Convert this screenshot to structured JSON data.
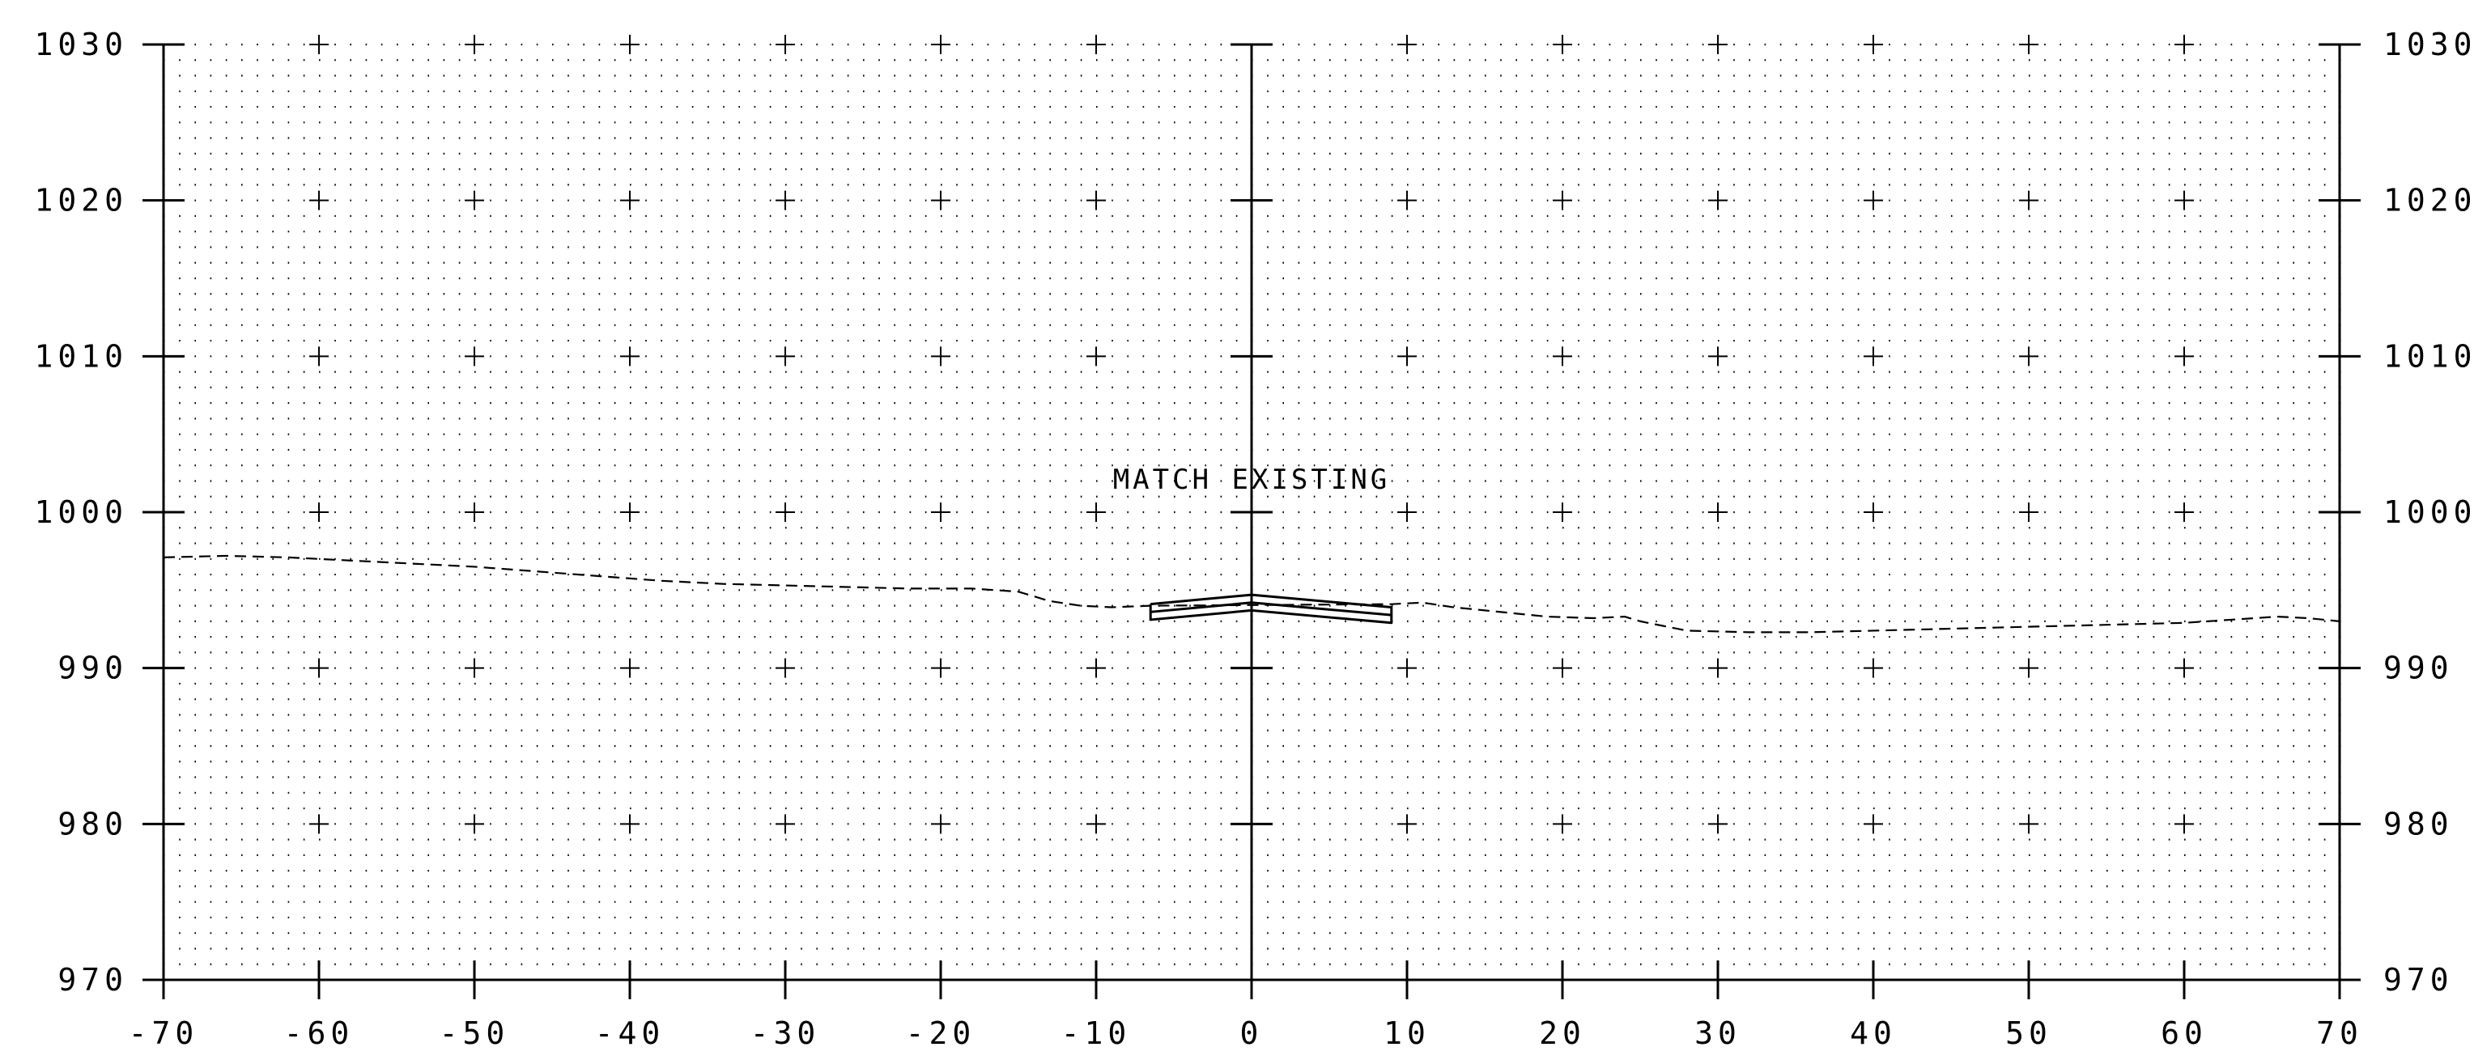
{
  "chart_data": {
    "type": "line",
    "title": "",
    "xlabel": "",
    "ylabel": "",
    "xlim": [
      -70,
      70
    ],
    "ylim": [
      970,
      1030
    ],
    "x_ticks": [
      "-70",
      "-60",
      "-50",
      "-40",
      "-30",
      "-20",
      "-10",
      "0",
      "10",
      "20",
      "30",
      "40",
      "50",
      "60",
      "70"
    ],
    "y_ticks_left": [
      "970",
      "980",
      "990",
      "1000",
      "1010",
      "1020",
      "1030"
    ],
    "y_ticks_right": [
      "970",
      "980",
      "990",
      "1000",
      "1010",
      "1020",
      "1030"
    ],
    "grid": true,
    "annotation": {
      "text": "MATCH EXISTING",
      "x": 0,
      "y": 1001.5
    },
    "series": [
      {
        "style": "dashed",
        "x": [
          -70,
          -66,
          -62,
          -58,
          -54,
          -50,
          -46,
          -42,
          -38,
          -34,
          -30,
          -26,
          -22,
          -18,
          -15,
          -13,
          -11,
          -9,
          -6.5,
          9,
          11,
          13,
          15,
          17,
          19,
          22,
          24,
          25,
          28,
          32,
          36,
          40,
          44,
          48,
          52,
          56,
          60,
          63,
          66,
          68,
          70
        ],
        "y": [
          997.1,
          997.2,
          997.1,
          996.9,
          996.7,
          996.5,
          996.2,
          995.9,
          995.6,
          995.4,
          995.3,
          995.2,
          995.1,
          995.1,
          994.9,
          994.3,
          994.0,
          993.9,
          994.0,
          994.1,
          994.2,
          993.9,
          993.7,
          993.5,
          993.3,
          993.2,
          993.3,
          993.0,
          992.4,
          992.3,
          992.3,
          992.4,
          992.5,
          992.6,
          992.7,
          992.8,
          992.9,
          993.1,
          993.3,
          993.2,
          993.0
        ]
      },
      {
        "style": "solid",
        "x": [
          -6.5,
          0,
          9,
          9,
          0,
          -6.5,
          -6.5
        ],
        "y": [
          994.1,
          994.7,
          993.9,
          992.9,
          993.7,
          993.1,
          994.1
        ]
      },
      {
        "style": "solid",
        "x": [
          -6.5,
          0,
          9
        ],
        "y": [
          993.6,
          994.2,
          993.4
        ]
      }
    ]
  }
}
